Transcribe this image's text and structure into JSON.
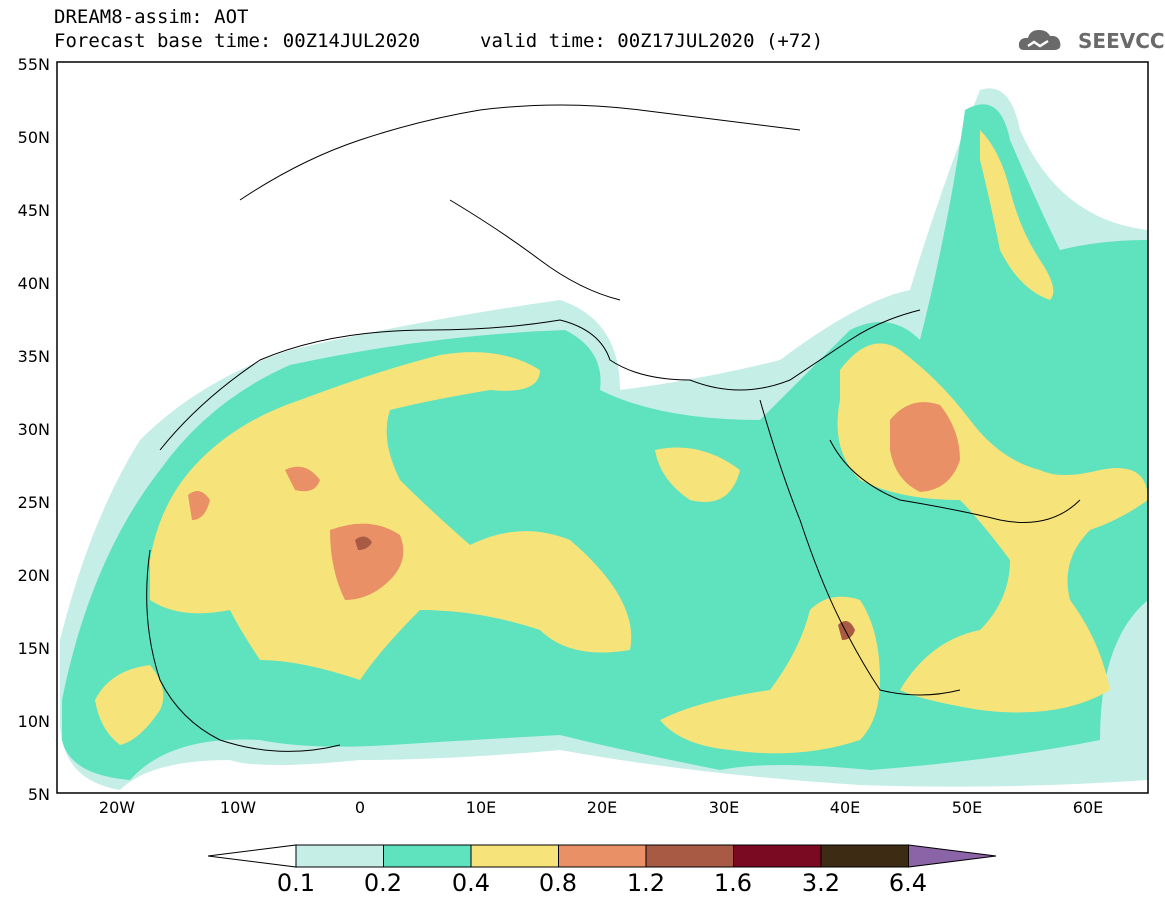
{
  "header": {
    "line1": "DREAM8-assim: AOT",
    "line2": "Forecast base time: 00Z14JUL2020",
    "line3": "valid time: 00Z17JUL2020 (+72)"
  },
  "logo": {
    "text": "SEEVCCC",
    "icon": "cloud-icon",
    "color": "#6a6a6a"
  },
  "axes": {
    "lat_labels": [
      "55N",
      "50N",
      "45N",
      "40N",
      "35N",
      "30N",
      "25N",
      "20N",
      "15N",
      "10N",
      "5N"
    ],
    "lon_labels": [
      "20W",
      "10W",
      "0",
      "10E",
      "20E",
      "30E",
      "40E",
      "50E",
      "60E"
    ]
  },
  "colorbar": {
    "colors": [
      "#ffffff",
      "#c4eee6",
      "#5fe2be",
      "#f6e47a",
      "#e99066",
      "#a85a44",
      "#7a0a22",
      "#3e2b14",
      "#8a64a6"
    ],
    "labels": [
      "0.1",
      "0.2",
      "0.4",
      "0.8",
      "1.2",
      "1.6",
      "3.2",
      "6.4"
    ]
  }
}
